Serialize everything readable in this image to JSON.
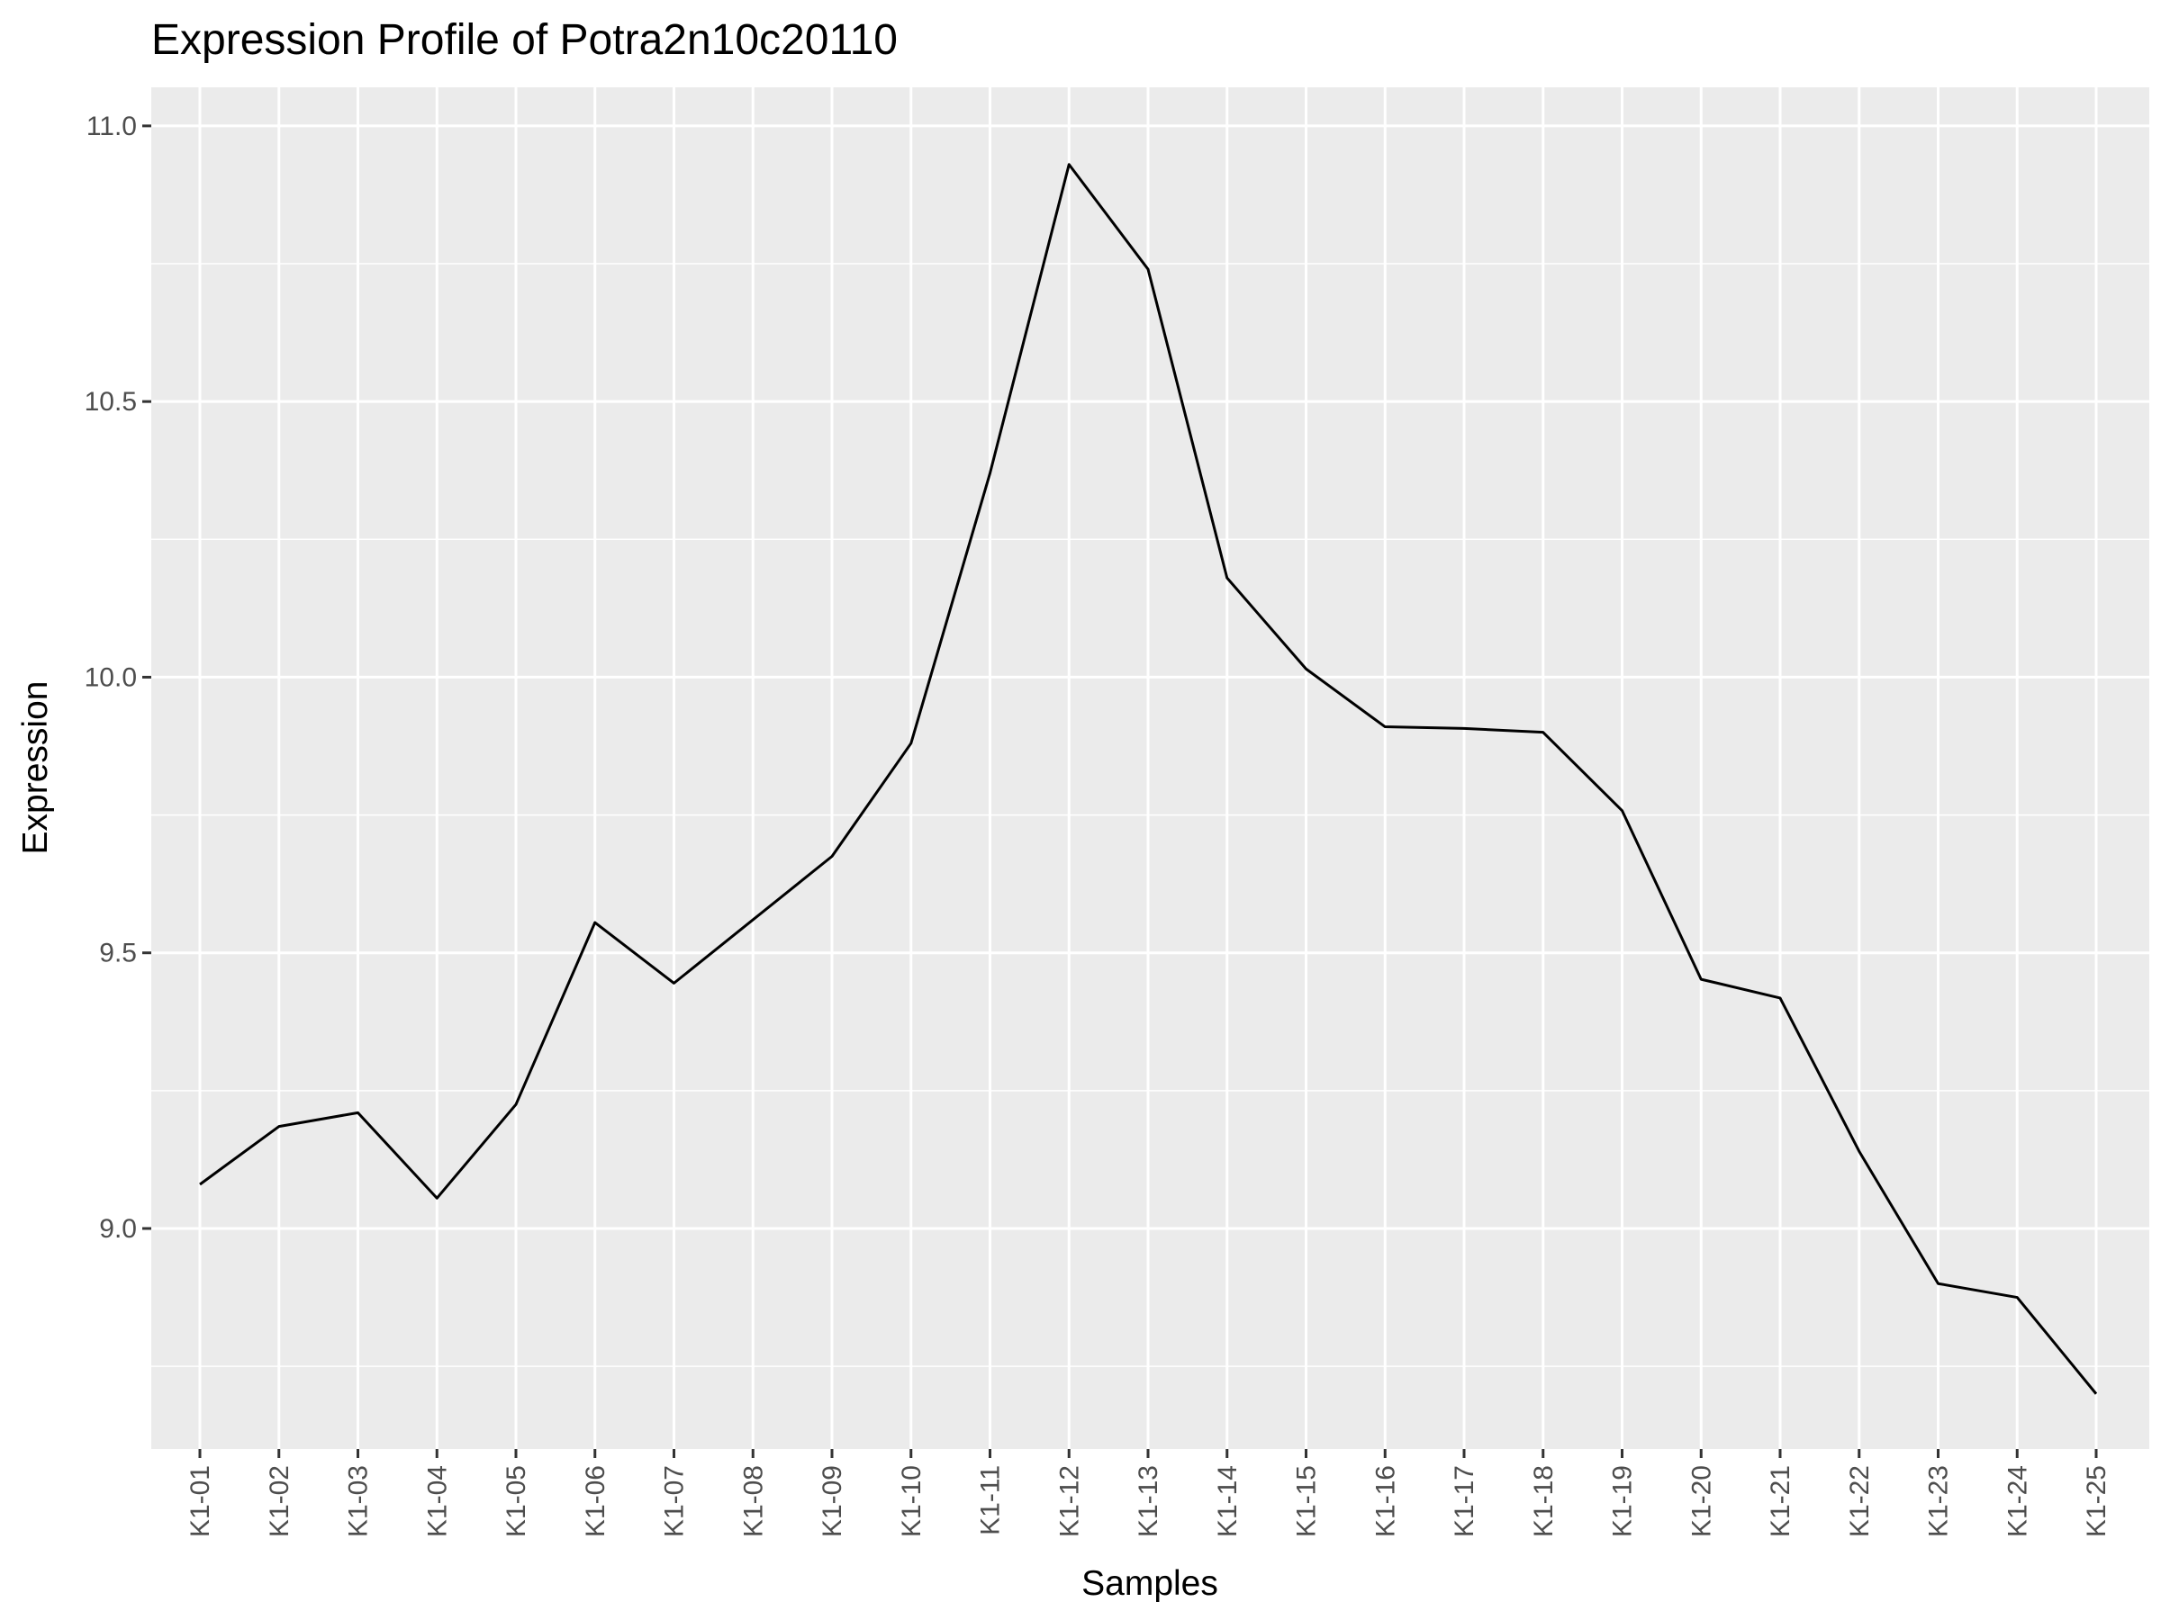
{
  "chart_data": {
    "type": "line",
    "title": "Expression Profile of Potra2n10c20110",
    "xlabel": "Samples",
    "ylabel": "Expression",
    "categories": [
      "K1-01",
      "K1-02",
      "K1-03",
      "K1-04",
      "K1-05",
      "K1-06",
      "K1-07",
      "K1-08",
      "K1-09",
      "K1-10",
      "K1-11",
      "K1-12",
      "K1-13",
      "K1-14",
      "K1-15",
      "K1-16",
      "K1-17",
      "K1-18",
      "K1-19",
      "K1-20",
      "K1-21",
      "K1-22",
      "K1-23",
      "K1-24",
      "K1-25"
    ],
    "series": [
      {
        "name": "Potra2n10c20110",
        "values": [
          9.08,
          9.185,
          9.21,
          9.055,
          9.225,
          9.555,
          9.445,
          9.56,
          9.675,
          9.88,
          10.37,
          10.93,
          10.74,
          10.18,
          10.015,
          9.91,
          9.907,
          9.9,
          9.758,
          9.452,
          9.418,
          9.14,
          8.9,
          8.875,
          8.7
        ]
      }
    ],
    "ylim": [
      8.6,
      11.07
    ],
    "yticks": [
      9.0,
      9.5,
      10.0,
      10.5,
      11.0
    ],
    "ytick_labels": [
      "9.0",
      "9.5",
      "10.0",
      "10.5",
      "11.0"
    ],
    "grid": true,
    "colors": {
      "panel": "#ebebeb",
      "grid": "#ffffff",
      "line": "#000000",
      "tick": "#4d4d4d"
    }
  }
}
